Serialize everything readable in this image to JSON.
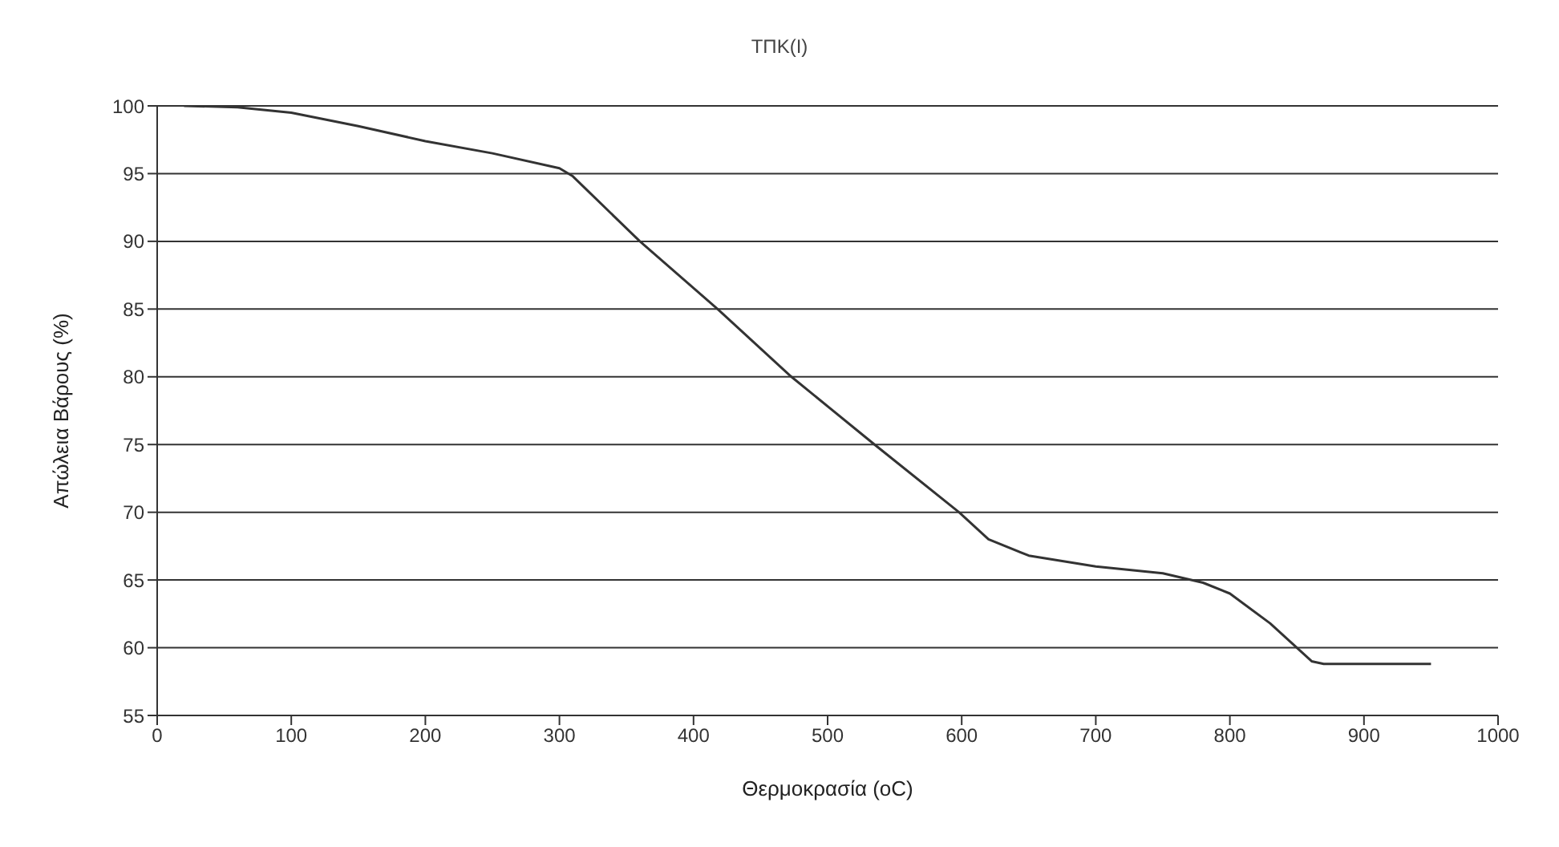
{
  "chart_data": {
    "type": "line",
    "title": "ΤΠΚ(Ι)",
    "xlabel": "Θερμοκρασία (oC)",
    "ylabel": "Απώλεια Βάρους (%)",
    "x": [
      20,
      60,
      100,
      150,
      200,
      250,
      300,
      310,
      360,
      418,
      473,
      535,
      598,
      620,
      650,
      700,
      750,
      780,
      800,
      830,
      861,
      870,
      950
    ],
    "series": [
      {
        "color": "#333333",
        "values": [
          100,
          99.9,
          99.5,
          98.5,
          97.4,
          96.5,
          95.4,
          94.8,
          90,
          85,
          80,
          75,
          70,
          68,
          66.8,
          66,
          65.5,
          64.8,
          64,
          61.8,
          59,
          58.8,
          58.8
        ]
      }
    ],
    "xlim": [
      0,
      1000
    ],
    "xticks": [
      0,
      100,
      200,
      300,
      400,
      500,
      600,
      700,
      800,
      900,
      1000
    ],
    "ylim": [
      55,
      100
    ],
    "yticks": [
      55,
      60,
      65,
      70,
      75,
      80,
      85,
      90,
      95,
      100
    ],
    "grid": "y",
    "legend": false,
    "marker": "none",
    "line_style": "solid"
  }
}
